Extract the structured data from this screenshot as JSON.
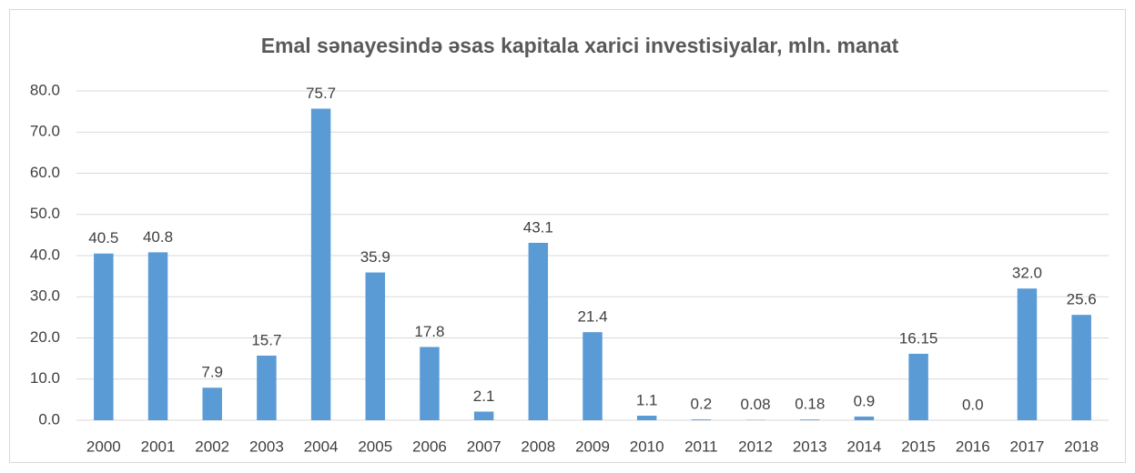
{
  "chart_data": {
    "type": "bar",
    "title": "Emal sənayesində əsas kapitala xarici investisiyalar, mln. manat",
    "categories": [
      "2000",
      "2001",
      "2002",
      "2003",
      "2004",
      "2005",
      "2006",
      "2007",
      "2008",
      "2009",
      "2010",
      "2011",
      "2012",
      "2013",
      "2014",
      "2015",
      "2016",
      "2017",
      "2018"
    ],
    "values": [
      40.5,
      40.8,
      7.9,
      15.7,
      75.7,
      35.9,
      17.8,
      2.1,
      43.1,
      21.4,
      1.1,
      0.2,
      0.08,
      0.18,
      0.9,
      16.15,
      0,
      32,
      25.6
    ],
    "value_labels": [
      "40.5",
      "40.8",
      "7.9",
      "15.7",
      "75.7",
      "35.9",
      "17.8",
      "2.1",
      "43.1",
      "21.4",
      "1.1",
      "0.2",
      "0.08",
      "0.18",
      "0.9",
      "16.15",
      "0.0",
      "32.0",
      "25.6"
    ],
    "color": "#5b9bd5",
    "ylim": [
      0,
      80
    ],
    "yticks": [
      {
        "value": 0,
        "label": "0.0"
      },
      {
        "value": 10,
        "label": "10.0"
      },
      {
        "value": 20,
        "label": "20.0"
      },
      {
        "value": 30,
        "label": "30.0"
      },
      {
        "value": 40,
        "label": "40.0"
      },
      {
        "value": 50,
        "label": "50.0"
      },
      {
        "value": 60,
        "label": "60.0"
      },
      {
        "value": 70,
        "label": "70.0"
      },
      {
        "value": 80,
        "label": "80.0"
      }
    ],
    "grid": true
  }
}
